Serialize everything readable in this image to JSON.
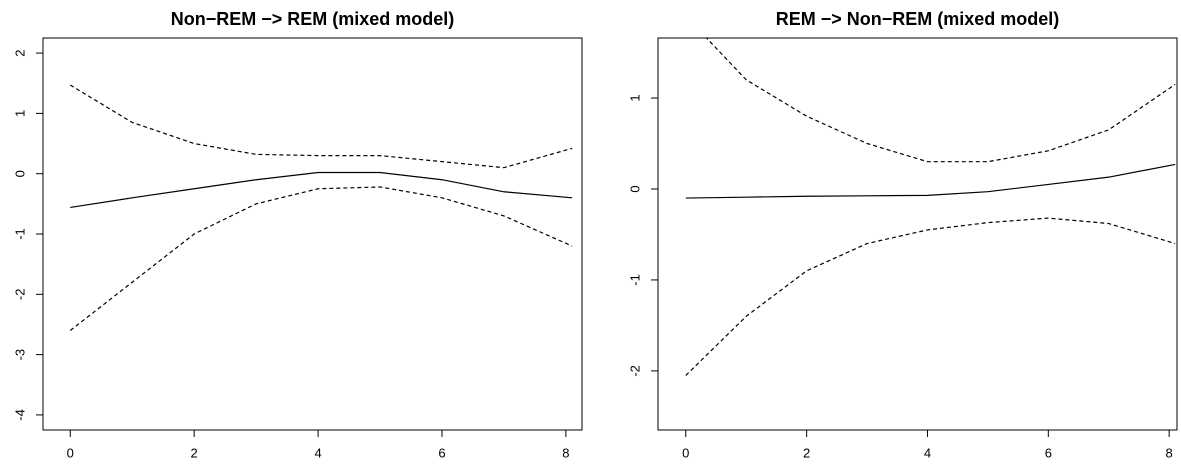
{
  "chart_data": [
    {
      "type": "line",
      "title": "Non−REM −> REM (mixed model)",
      "x": [
        0,
        1,
        2,
        3,
        4,
        5,
        6,
        7,
        8.1
      ],
      "series": [
        {
          "color": "#000000",
          "linestyle": "solid",
          "values": [
            -0.56,
            -0.4,
            -0.25,
            -0.1,
            0.02,
            0.02,
            -0.1,
            -0.3,
            -0.4
          ]
        },
        {
          "color": "#000000",
          "linestyle": "dashed",
          "values": [
            1.47,
            0.85,
            0.5,
            0.32,
            0.3,
            0.3,
            0.2,
            0.1,
            0.42
          ]
        },
        {
          "color": "#000000",
          "linestyle": "dashed",
          "values": [
            -2.6,
            -1.8,
            -1.0,
            -0.5,
            -0.25,
            -0.22,
            -0.4,
            -0.7,
            -1.2
          ]
        }
      ],
      "xlim": [
        -0.44,
        8.26
      ],
      "xticks": [
        0,
        2,
        4,
        6,
        8
      ],
      "ylim": [
        -4.25,
        2.25
      ],
      "yticks": [
        -4,
        -3,
        -2,
        -1,
        0,
        1,
        2
      ]
    },
    {
      "type": "line",
      "title": "REM −> Non−REM (mixed model)",
      "x": [
        0,
        1,
        2,
        3,
        4,
        5,
        6,
        7,
        8.1
      ],
      "series": [
        {
          "color": "#000000",
          "linestyle": "solid",
          "values": [
            -0.1,
            -0.09,
            -0.08,
            -0.075,
            -0.07,
            -0.03,
            0.05,
            0.13,
            0.27
          ]
        },
        {
          "color": "#000000",
          "linestyle": "dashed",
          "values": [
            1.9,
            1.2,
            0.8,
            0.5,
            0.3,
            0.3,
            0.42,
            0.65,
            1.15
          ]
        },
        {
          "color": "#000000",
          "linestyle": "dashed",
          "values": [
            -2.05,
            -1.4,
            -0.9,
            -0.6,
            -0.45,
            -0.37,
            -0.32,
            -0.38,
            -0.6
          ]
        }
      ],
      "xlim": [
        -0.46,
        8.13
      ],
      "xticks": [
        0,
        2,
        4,
        6,
        8
      ],
      "ylim": [
        -2.65,
        1.66
      ],
      "yticks": [
        -2,
        -1,
        0,
        1
      ]
    }
  ]
}
